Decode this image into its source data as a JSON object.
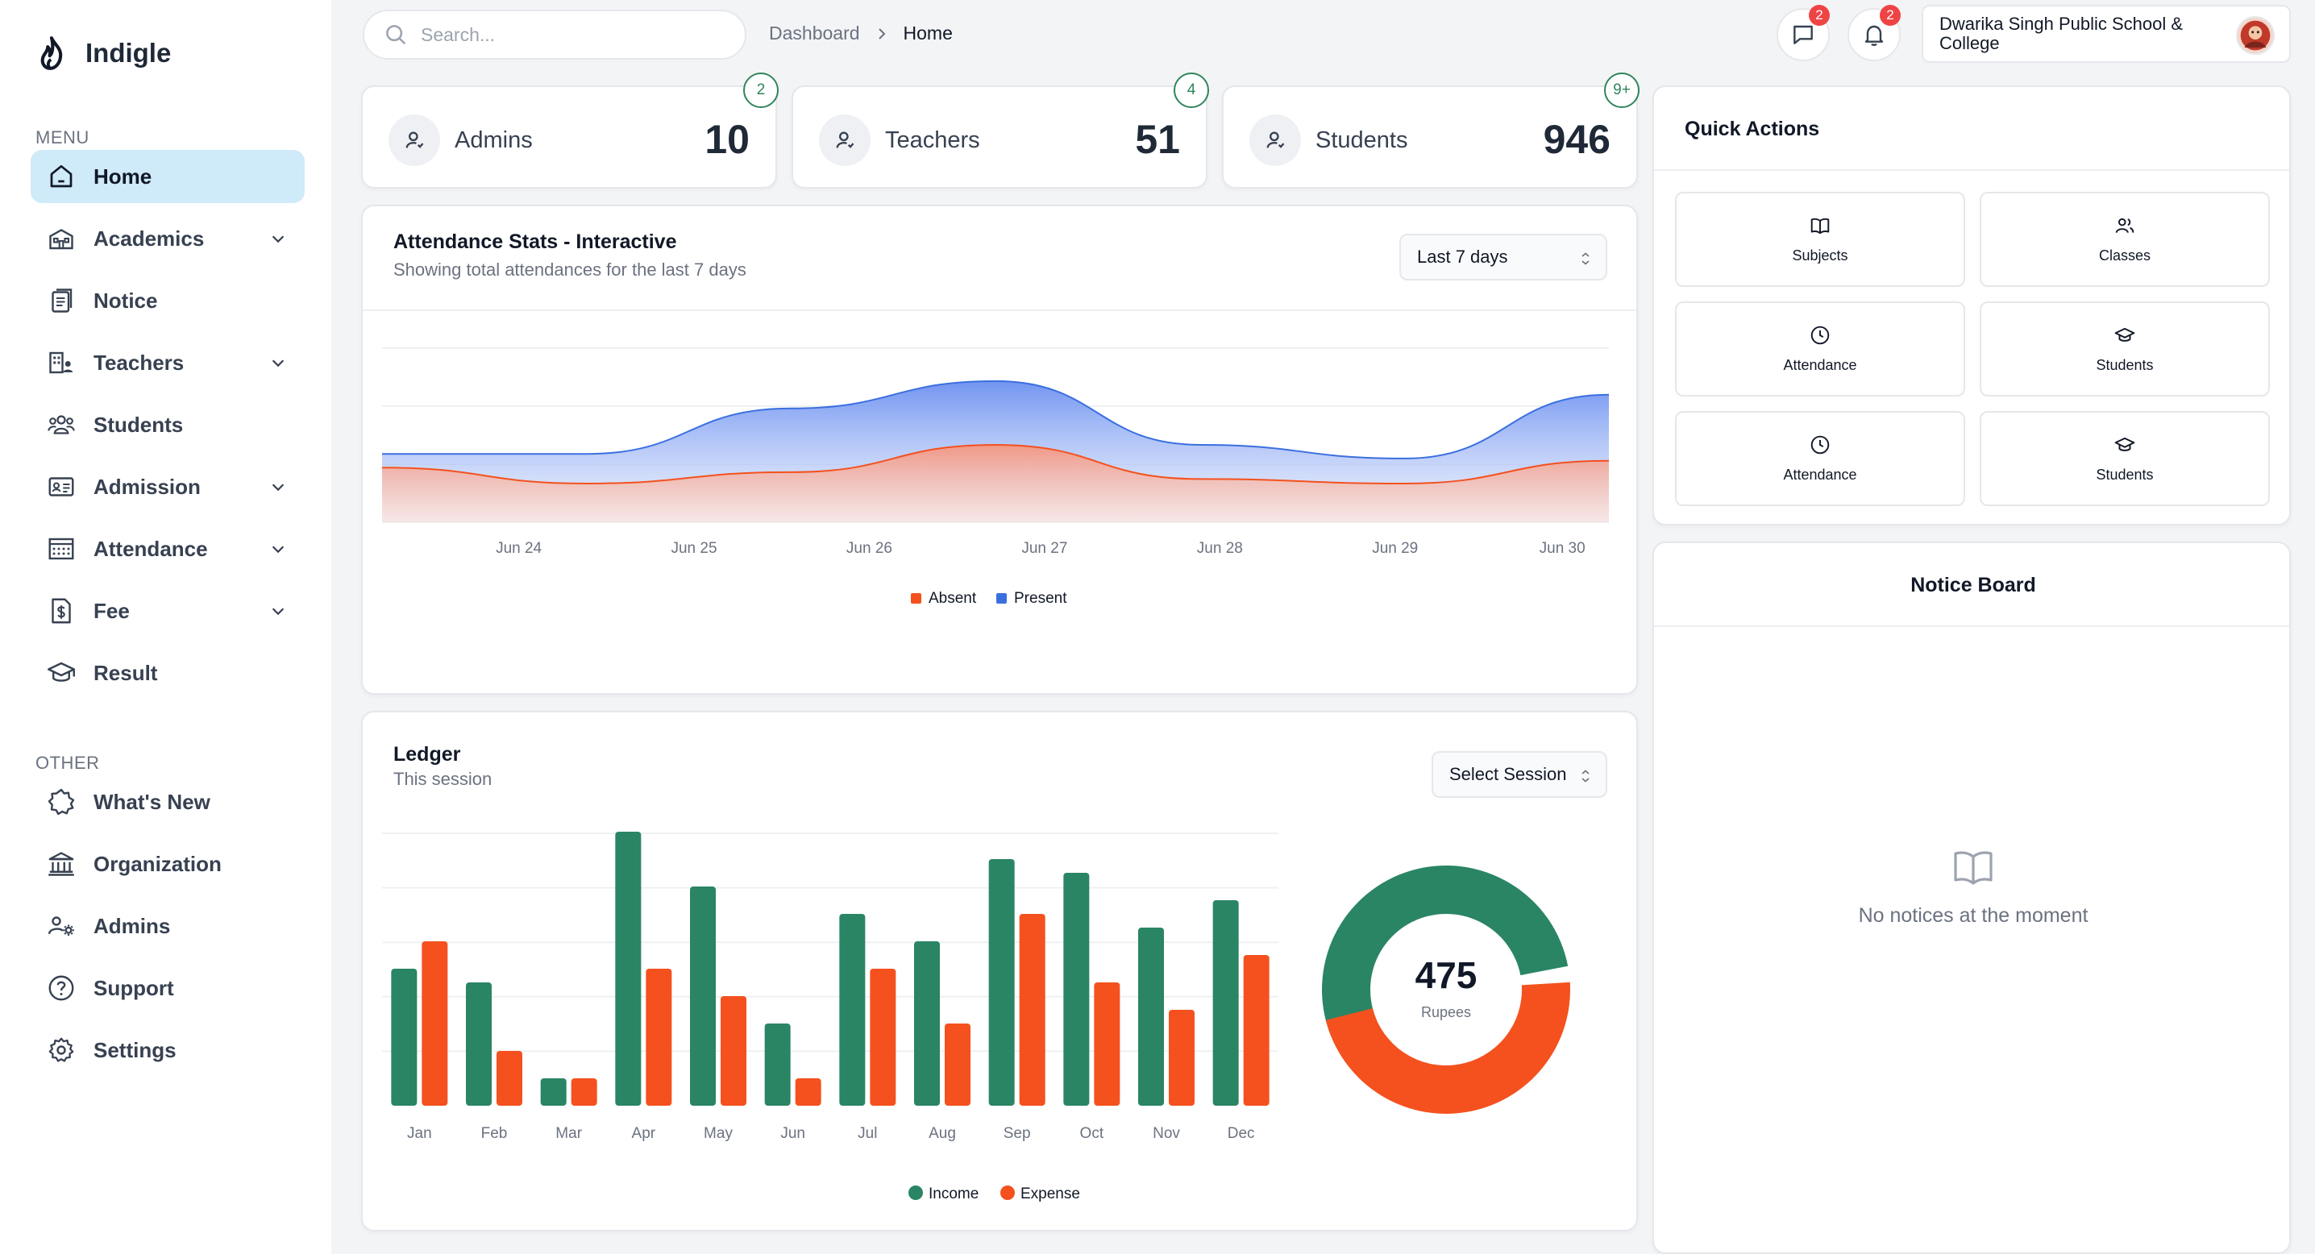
{
  "app": {
    "name": "Indigle"
  },
  "sidebar": {
    "menu_label": "MENU",
    "other_label": "OTHER",
    "menu_items": [
      {
        "label": "Home",
        "icon": "home-icon",
        "active": true,
        "expandable": false
      },
      {
        "label": "Academics",
        "icon": "academics-icon",
        "active": false,
        "expandable": true
      },
      {
        "label": "Notice",
        "icon": "notice-icon",
        "active": false,
        "expandable": false
      },
      {
        "label": "Teachers",
        "icon": "teachers-icon",
        "active": false,
        "expandable": true
      },
      {
        "label": "Students",
        "icon": "students-icon",
        "active": false,
        "expandable": false
      },
      {
        "label": "Admission",
        "icon": "admission-icon",
        "active": false,
        "expandable": true
      },
      {
        "label": "Attendance",
        "icon": "attendance-icon",
        "active": false,
        "expandable": true
      },
      {
        "label": "Fee",
        "icon": "fee-icon",
        "active": false,
        "expandable": true
      },
      {
        "label": "Result",
        "icon": "result-icon",
        "active": false,
        "expandable": false
      }
    ],
    "other_items": [
      {
        "label": "What's New",
        "icon": "whats-new-icon"
      },
      {
        "label": "Organization",
        "icon": "organization-icon"
      },
      {
        "label": "Admins",
        "icon": "admins-icon"
      },
      {
        "label": "Support",
        "icon": "support-icon"
      },
      {
        "label": "Settings",
        "icon": "settings-icon"
      }
    ]
  },
  "header": {
    "search_placeholder": "Search...",
    "breadcrumb": [
      "Dashboard",
      "Home"
    ],
    "messages_count": "2",
    "notifications_count": "2",
    "school_name": "Dwarika Singh Public School & College"
  },
  "stats": [
    {
      "label": "Admins",
      "value": "10",
      "badge": "2"
    },
    {
      "label": "Teachers",
      "value": "51",
      "badge": "4"
    },
    {
      "label": "Students",
      "value": "946",
      "badge": "9+"
    }
  ],
  "attendance": {
    "title": "Attendance Stats - Interactive",
    "subtitle": "Showing total attendances for the last 7 days",
    "range_label": "Last 7 days",
    "chart_data": {
      "type": "area",
      "x": [
        "Jun 24",
        "Jun 25",
        "Jun 26",
        "Jun 27",
        "Jun 28",
        "Jun 29",
        "Jun 30"
      ],
      "series": [
        {
          "name": "Absent",
          "color": "#f4511e",
          "values": [
            1.2,
            0.85,
            1.1,
            1.7,
            0.95,
            0.85,
            1.35
          ]
        },
        {
          "name": "Present",
          "color": "#3b6fe0",
          "values": [
            1.5,
            1.5,
            2.5,
            3.1,
            1.7,
            1.4,
            2.8
          ]
        }
      ],
      "legend_position": "bottom-center",
      "grid": true
    }
  },
  "ledger": {
    "title": "Ledger",
    "subtitle": "This session",
    "session_label": "Select Session",
    "chart_data": {
      "type": "bar",
      "categories": [
        "Jan",
        "Feb",
        "Mar",
        "Apr",
        "May",
        "Jun",
        "Jul",
        "Aug",
        "Sep",
        "Oct",
        "Nov",
        "Dec"
      ],
      "series": [
        {
          "name": "Income",
          "color": "#2a8564",
          "values": [
            50,
            45,
            10,
            100,
            80,
            30,
            70,
            60,
            90,
            85,
            65,
            75
          ]
        },
        {
          "name": "Expense",
          "color": "#f4511e",
          "values": [
            60,
            20,
            10,
            50,
            40,
            10,
            50,
            30,
            70,
            45,
            35,
            55
          ]
        }
      ],
      "ylim": [
        0,
        100
      ],
      "legend_position": "bottom-center",
      "grid": true
    },
    "donut": {
      "total": "475",
      "unit": "Rupees",
      "chart_data": {
        "type": "pie",
        "series": [
          {
            "name": "Income",
            "color": "#2a8564",
            "value": 53
          },
          {
            "name": "Expense",
            "color": "#f4511e",
            "value": 47
          }
        ]
      }
    }
  },
  "quick_actions": {
    "title": "Quick Actions",
    "items": [
      {
        "label": "Subjects",
        "icon": "book-icon"
      },
      {
        "label": "Classes",
        "icon": "users-icon"
      },
      {
        "label": "Attendance",
        "icon": "clock-icon"
      },
      {
        "label": "Students",
        "icon": "graduation-cap-icon"
      },
      {
        "label": "Attendance",
        "icon": "clock-icon"
      },
      {
        "label": "Students",
        "icon": "graduation-cap-icon"
      }
    ]
  },
  "notice_board": {
    "title": "Notice Board",
    "empty_text": "No notices at the moment"
  }
}
